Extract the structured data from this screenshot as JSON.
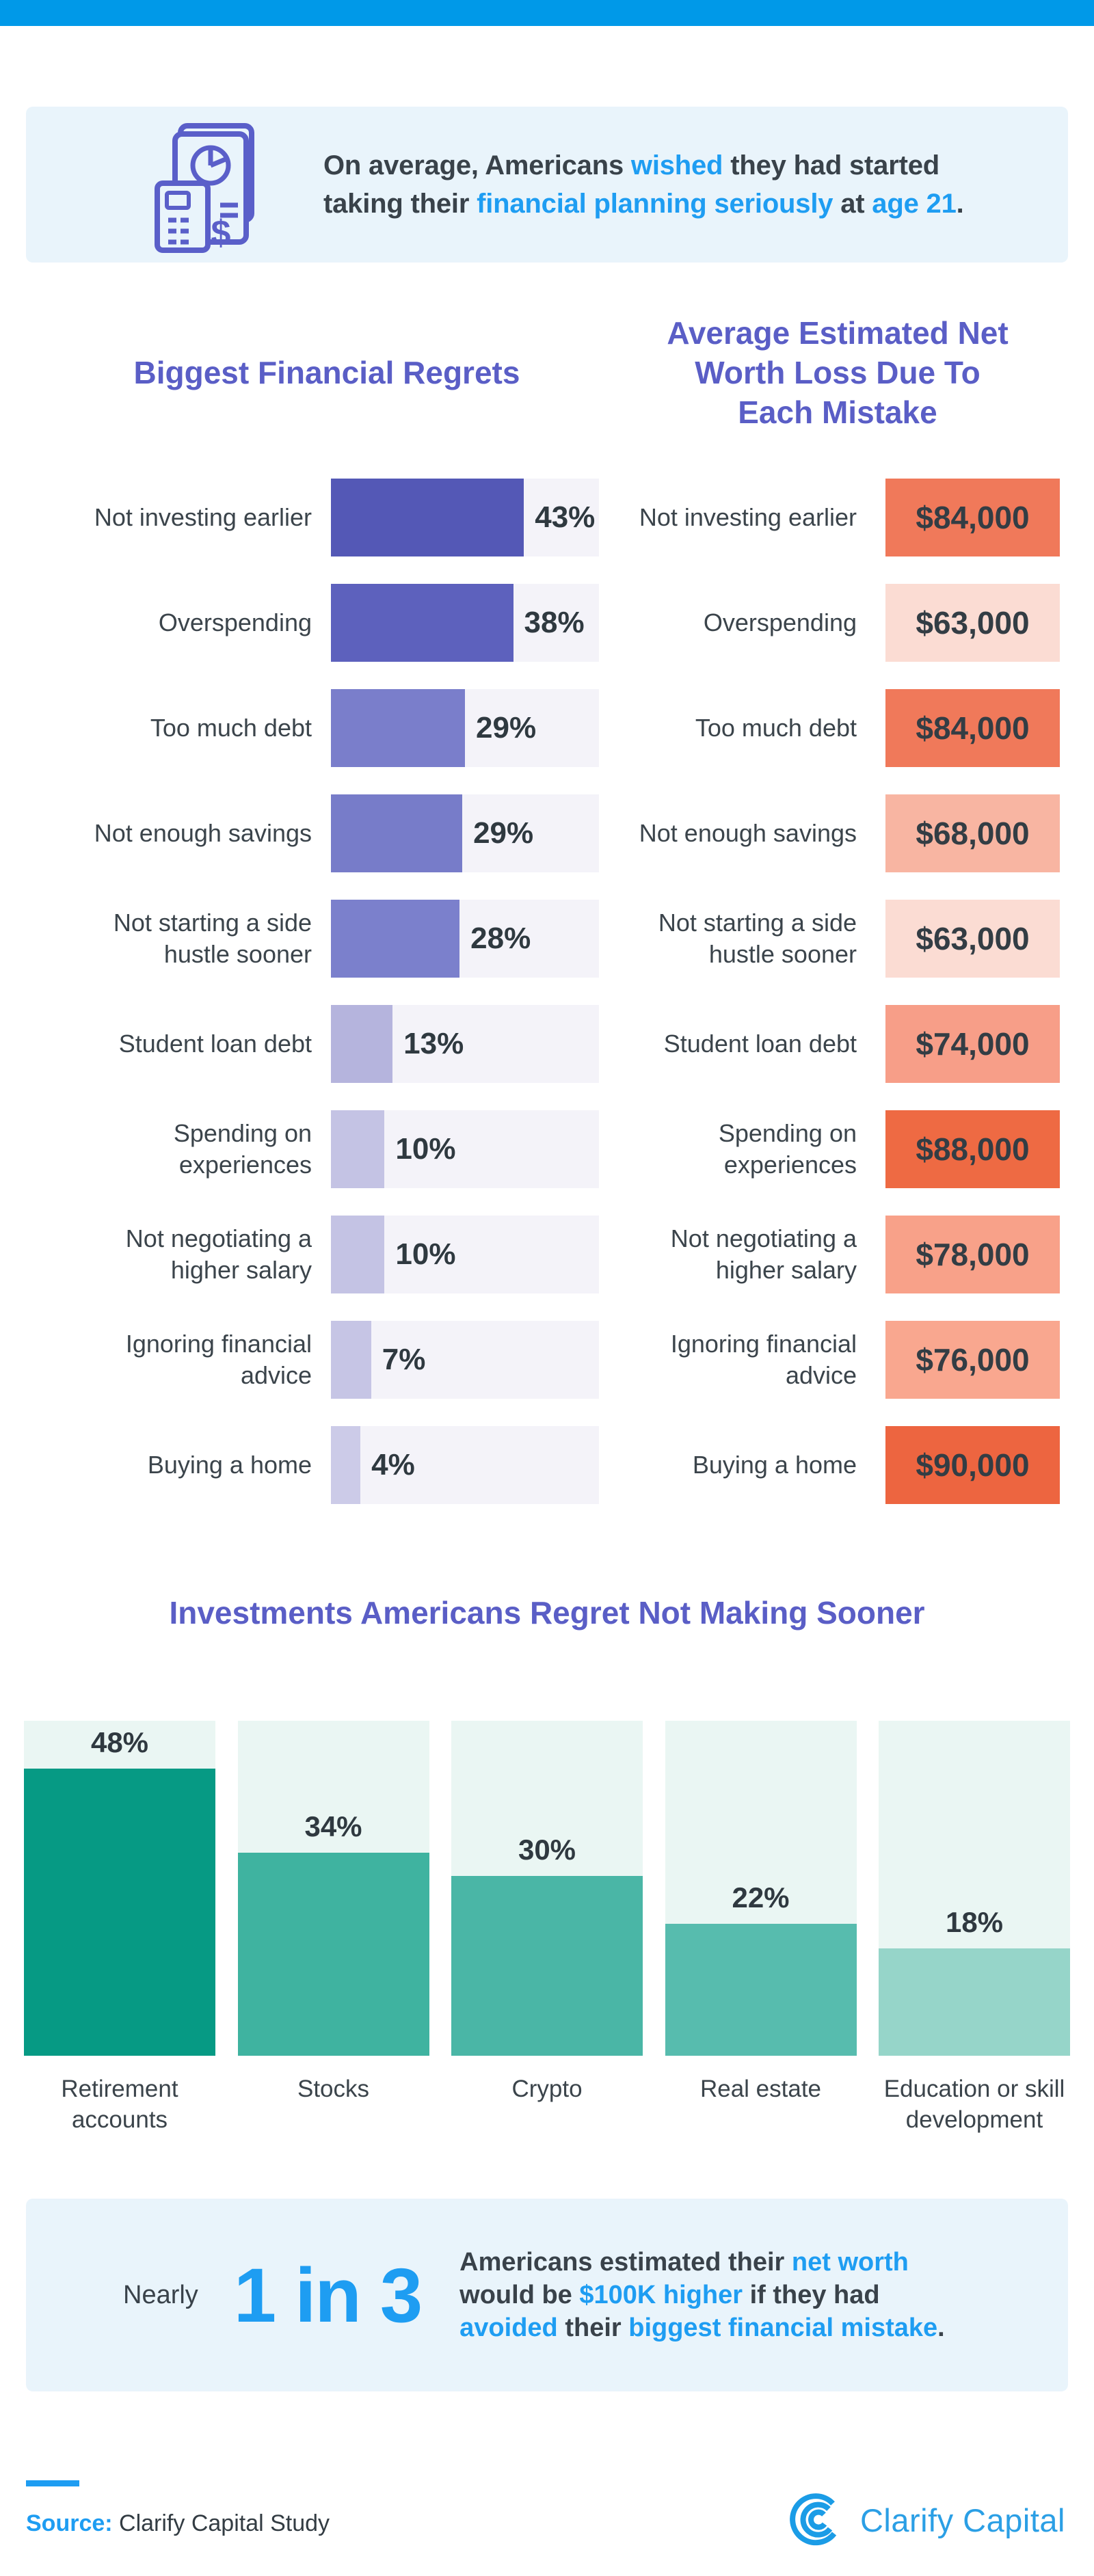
{
  "colors": {
    "accent_blue": "#0099e8",
    "callout_bg": "#e9f4fb",
    "title_purple": "#5a5ec6",
    "text_accent_blue": "#1e9df2",
    "logo_blue": "#2b9fe5",
    "purple_track": "#f4f3f9",
    "teal_track": "#eaf6f3"
  },
  "intro_callout": {
    "icon": "calculator-report-icon",
    "segments": [
      {
        "t": "On average, Americans ",
        "a": 0
      },
      {
        "t": "wished",
        "a": 1
      },
      {
        "t": " they had started taking their ",
        "a": 0
      },
      {
        "t": "financial planning seriously",
        "a": 1
      },
      {
        "t": " at ",
        "a": 0
      },
      {
        "t": "age 21",
        "a": 1
      },
      {
        "t": ".",
        "a": 0
      }
    ]
  },
  "chart_data": [
    {
      "id": "biggest-financial-regrets",
      "type": "bar",
      "orientation": "horizontal",
      "title": "Biggest Financial Regrets",
      "categories": [
        "Not investing earlier",
        "Overspending",
        "Too much debt",
        "Not enough savings",
        "Not starting a side\nhustle sooner",
        "Student loan debt",
        "Spending on experiences",
        "Not negotiating a\nhigher salary",
        "Ignoring financial advice",
        "Buying a home"
      ],
      "values": [
        43,
        38,
        29,
        29,
        28,
        13,
        10,
        10,
        7,
        4
      ],
      "value_labels": [
        "43%",
        "38%",
        "29%",
        "29%",
        "28%",
        "13%",
        "10%",
        "10%",
        "7%",
        "4%"
      ],
      "bar_colors": [
        "#5458b6",
        "#5d61bd",
        "#7a7ecb",
        "#777cc9",
        "#7b80cc",
        "#b5b4dd",
        "#c4c3e4",
        "#c4c3e4",
        "#c6c5e5",
        "#cccbe8"
      ],
      "bar_width_pct": [
        72,
        68,
        50,
        49,
        48,
        23,
        20,
        20,
        15,
        11
      ],
      "xlim": [
        0,
        60
      ],
      "grid": false,
      "legend": false
    },
    {
      "id": "net-worth-loss",
      "type": "bar",
      "orientation": "horizontal",
      "title": "Average Estimated Net\nWorth Loss Due To\nEach Mistake",
      "categories": [
        "Not investing earlier",
        "Overspending",
        "Too much debt",
        "Not enough savings",
        "Not starting a side\nhustle sooner",
        "Student loan debt",
        "Spending on\nexperiences",
        "Not negotiating a\nhigher salary",
        "Ignoring financial\nadvice",
        "Buying a home"
      ],
      "values": [
        84000,
        63000,
        84000,
        68000,
        63000,
        74000,
        88000,
        78000,
        76000,
        90000
      ],
      "value_labels": [
        "$84,000",
        "$63,000",
        "$84,000",
        "$68,000",
        "$63,000",
        "$74,000",
        "$88,000",
        "$78,000",
        "$76,000",
        "$90,000"
      ],
      "box_colors": [
        "#f0795a",
        "#fbdcd3",
        "#f0795a",
        "#f8b5a2",
        "#fbdcd3",
        "#f79e88",
        "#ee6a43",
        "#f8a189",
        "#f9a78f",
        "#ed6540"
      ],
      "grid": false,
      "legend": false
    },
    {
      "id": "investments-regret",
      "type": "bar",
      "orientation": "vertical",
      "title": "Investments Americans Regret Not Making Sooner",
      "categories": [
        "Retirement\naccounts",
        "Stocks",
        "Crypto",
        "Real estate",
        "Education or skill\ndevelopment"
      ],
      "values": [
        48,
        34,
        30,
        22,
        18
      ],
      "value_labels": [
        "48%",
        "34%",
        "30%",
        "22%",
        "18%"
      ],
      "bar_colors": [
        "#069a84",
        "#3fb3a0",
        "#4ab6a6",
        "#57bcae",
        "#96d5c9"
      ],
      "fill_pct": [
        85.7,
        60.7,
        53.6,
        39.3,
        32.1
      ],
      "ylim": [
        0,
        56
      ],
      "grid": false,
      "legend": false
    }
  ],
  "stat_callout": {
    "prefix": "Nearly",
    "big": "1 in 3",
    "segments": [
      {
        "t": "Americans estimated their ",
        "a": 0
      },
      {
        "t": "net worth",
        "a": 1
      },
      {
        "t": " would be ",
        "a": 0
      },
      {
        "t": "$100K higher",
        "a": 1
      },
      {
        "t": " if they had ",
        "a": 0
      },
      {
        "t": "avoided",
        "a": 1
      },
      {
        "t": " their ",
        "a": 0
      },
      {
        "t": "biggest financial mistake",
        "a": 1
      },
      {
        "t": ".",
        "a": 0
      }
    ]
  },
  "footer": {
    "source_label": "Source:",
    "source_text": " Clarify Capital Study",
    "logo_text": "Clarify Capital",
    "logo_icon": "clarify-capital-c-mark"
  }
}
